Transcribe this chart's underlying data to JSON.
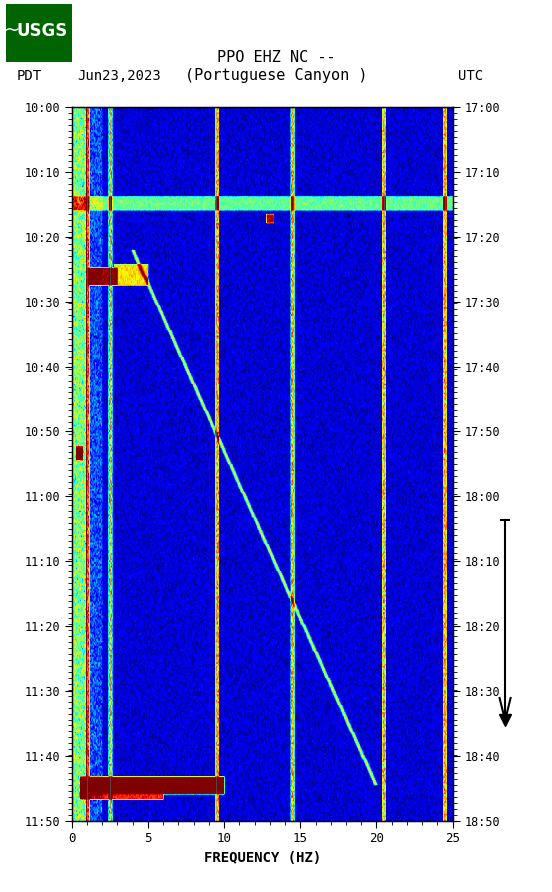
{
  "title_line1": "PPO EHZ NC --",
  "title_line2": "(Portuguese Canyon )",
  "left_label": "PDT",
  "date_label": "Jun23,2023",
  "right_label": "UTC",
  "xlabel": "FREQUENCY (HZ)",
  "freq_min": 0,
  "freq_max": 25,
  "time_labels_left": [
    "10:00",
    "10:10",
    "10:20",
    "10:30",
    "10:40",
    "10:50",
    "11:00",
    "11:10",
    "11:20",
    "11:30",
    "11:40",
    "11:50"
  ],
  "time_labels_right": [
    "17:00",
    "17:10",
    "17:20",
    "17:30",
    "17:40",
    "17:50",
    "18:00",
    "18:10",
    "18:20",
    "18:30",
    "18:40",
    "18:50"
  ],
  "freq_ticks": [
    0,
    5,
    10,
    15,
    20,
    25
  ],
  "background_color": "#000080",
  "fig_bg": "#ffffff",
  "usgs_green": "#006400",
  "vertical_line_freqs": [
    1.0,
    2.5,
    9.5,
    14.5,
    20.5,
    24.5
  ],
  "colormap": "jet",
  "seed": 42
}
